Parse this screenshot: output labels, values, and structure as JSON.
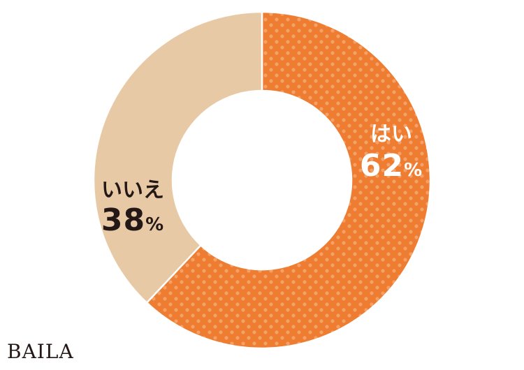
{
  "chart_data": {
    "type": "pie",
    "donut": true,
    "start": "top",
    "direction": "clockwise",
    "slices": [
      {
        "label": "はい",
        "value": 62,
        "value_label": "62",
        "unit": "%",
        "color": "#EE7D32",
        "pattern_color": "#F4A066",
        "text_color": "#FFFFFF"
      },
      {
        "label": "いいえ",
        "value": 38,
        "value_label": "38",
        "unit": "%",
        "color": "#E8C9A6",
        "text_color": "#231815"
      }
    ]
  },
  "logo": "BAILA"
}
